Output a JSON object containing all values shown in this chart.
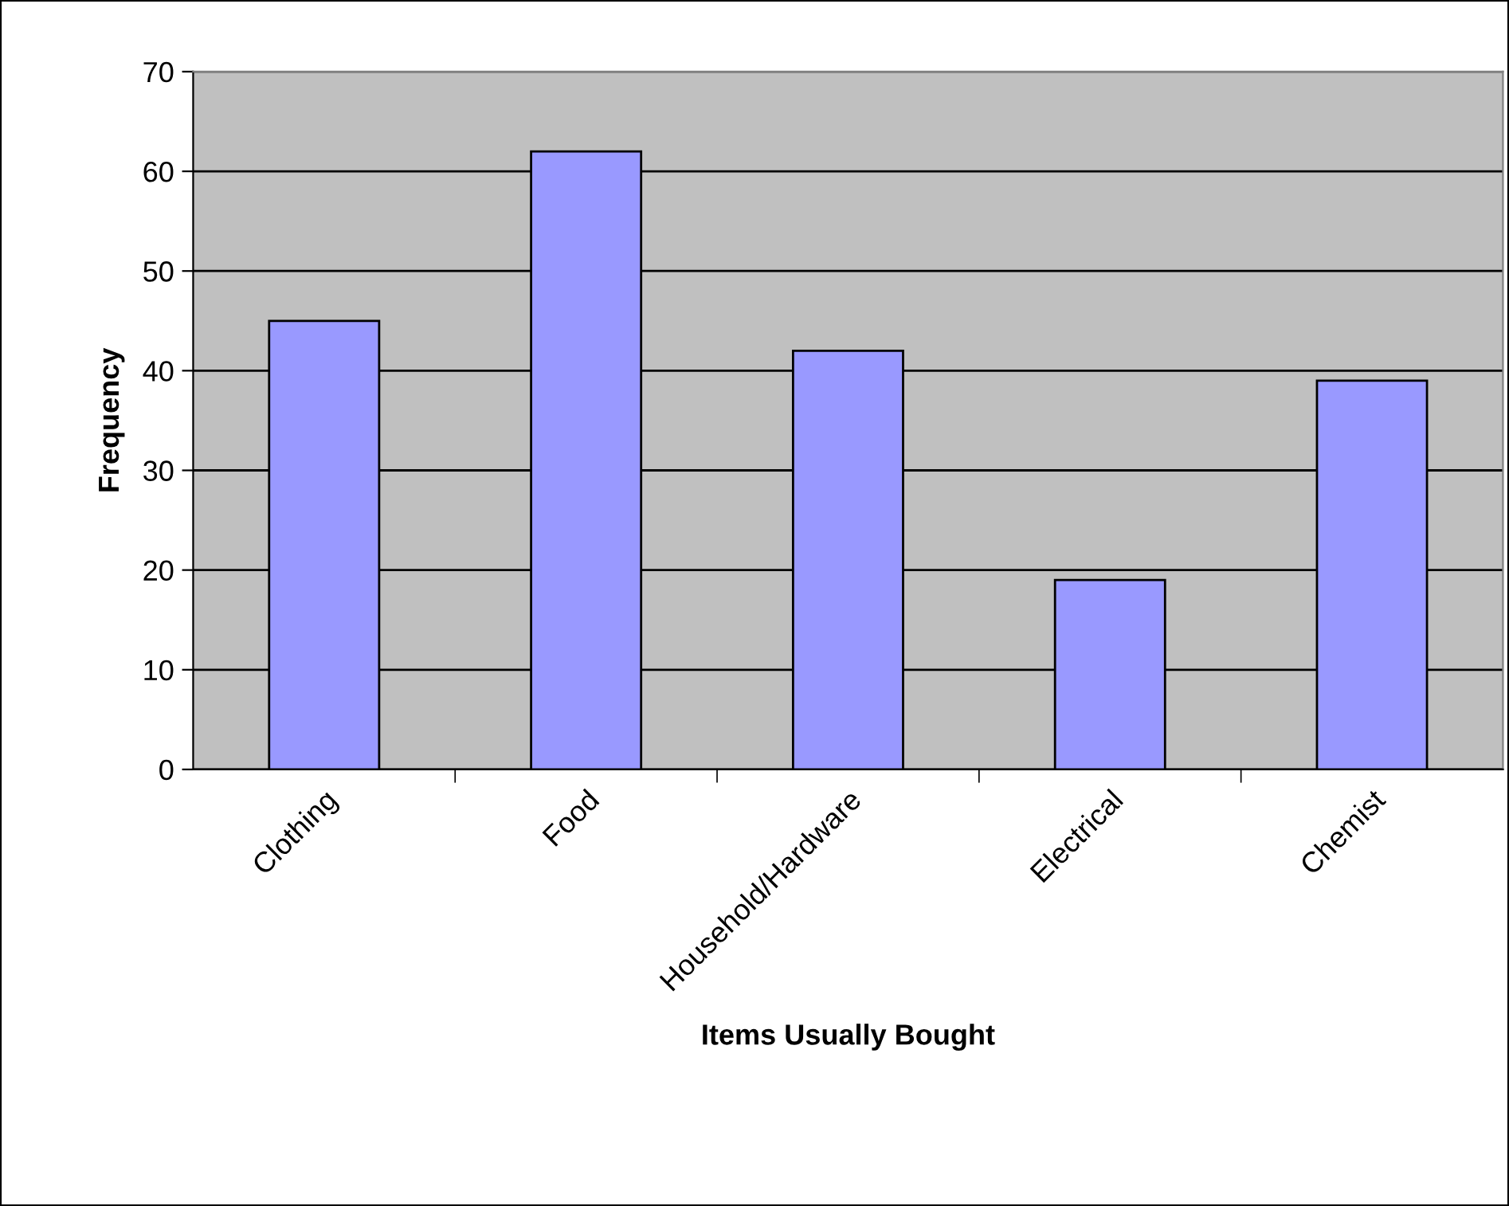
{
  "chart_data": {
    "type": "bar",
    "xlabel": "Items Usually Bought",
    "ylabel": "Frequency",
    "categories": [
      "Clothing",
      "Food",
      "Household/Hardware",
      "Electrical",
      "Chemist"
    ],
    "values": [
      45,
      62,
      42,
      19,
      39
    ],
    "color": "#9999ff",
    "ylim": [
      0,
      70
    ],
    "yticks": [
      0,
      10,
      20,
      30,
      40,
      50,
      60,
      70
    ],
    "grid": "y",
    "legend": false
  }
}
